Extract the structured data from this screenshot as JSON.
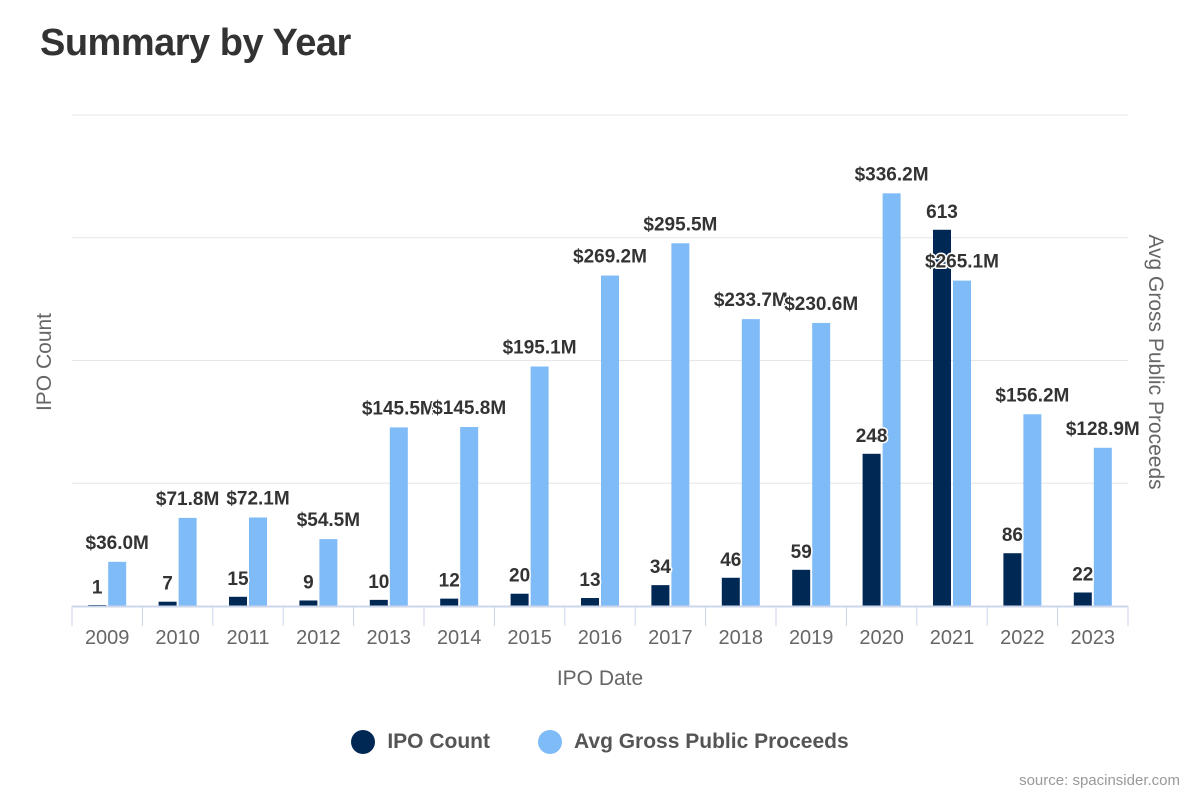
{
  "title": "Summary by Year",
  "source": "source: spacinsider.com",
  "colors": {
    "ipo_count": "#002855",
    "avg_proceeds": "#7fbbf7",
    "grid": "#e6e6e6",
    "axis": "#ccd6eb"
  },
  "chart_data": {
    "type": "bar",
    "title": "Summary by Year",
    "xlabel": "IPO Date",
    "ylabel": "IPO Count",
    "y2label": "Avg Gross Public Proceeds",
    "categories": [
      "2009",
      "2010",
      "2011",
      "2012",
      "2013",
      "2014",
      "2015",
      "2016",
      "2017",
      "2018",
      "2019",
      "2020",
      "2021",
      "2022",
      "2023"
    ],
    "ylim": [
      0,
      800
    ],
    "y2lim": [
      0,
      400
    ],
    "grid": true,
    "legend_position": "bottom",
    "series": [
      {
        "name": "IPO Count",
        "axis": "left",
        "values": [
          1,
          7,
          15,
          9,
          10,
          12,
          20,
          13,
          34,
          46,
          59,
          248,
          613,
          86,
          22
        ],
        "labels": [
          "1",
          "7",
          "15",
          "9",
          "10",
          "12",
          "20",
          "13",
          "34",
          "46",
          "59",
          "248",
          "613",
          "86",
          "22"
        ]
      },
      {
        "name": "Avg Gross Public Proceeds",
        "axis": "right",
        "values": [
          36.0,
          71.8,
          72.1,
          54.5,
          145.5,
          145.8,
          195.1,
          269.2,
          295.5,
          233.7,
          230.6,
          336.2,
          265.1,
          156.2,
          128.9
        ],
        "labels": [
          "$36.0M",
          "$71.8M",
          "$72.1M",
          "$54.5M",
          "$145.5M",
          "$145.8M",
          "$195.1M",
          "$269.2M",
          "$295.5M",
          "$233.7M",
          "$230.6M",
          "$336.2M",
          "$265.1M",
          "$156.2M",
          "$128.9M"
        ]
      }
    ]
  }
}
